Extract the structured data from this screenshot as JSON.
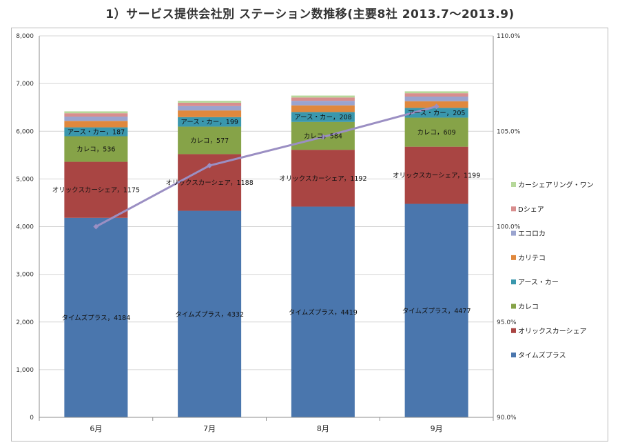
{
  "page": {
    "title": "1）サービス提供会社別 ステーション数推移(主要8社 2013.7～2013.9)"
  },
  "chart_data": {
    "type": "bar",
    "stacked": true,
    "categories": [
      "6月",
      "7月",
      "8月",
      "9月"
    ],
    "ylim": [
      0,
      8000
    ],
    "y_ticks": [
      "0",
      "1,000",
      "2,000",
      "3,000",
      "4,000",
      "5,000",
      "6,000",
      "7,000",
      "8,000"
    ],
    "y2lim": [
      0.9,
      1.1
    ],
    "y2_ticks": [
      "90.0%",
      "95.0%",
      "100.0%",
      "105.0%",
      "110.0%"
    ],
    "gridlines": true,
    "legend_position": "right",
    "series": [
      {
        "name": "タイムズプラス",
        "color": "#4a76ad",
        "values": [
          4184,
          4332,
          4419,
          4477
        ],
        "labeled": true
      },
      {
        "name": "オリックスカーシェア",
        "color": "#a94543",
        "values": [
          1175,
          1188,
          1192,
          1199
        ],
        "labeled": true
      },
      {
        "name": "カレコ",
        "color": "#86a348",
        "values": [
          536,
          577,
          584,
          609
        ],
        "labeled": true
      },
      {
        "name": "アース・カー",
        "color": "#3a97ad",
        "values": [
          187,
          199,
          208,
          205
        ],
        "labeled": true
      },
      {
        "name": "カリテコ",
        "color": "#e0883d",
        "values": [
          135,
          140,
          140,
          140
        ],
        "labeled": false
      },
      {
        "name": "エコロカ",
        "color": "#9aa4cf",
        "values": [
          90,
          92,
          95,
          97
        ],
        "labeled": false
      },
      {
        "name": "Dシェア",
        "color": "#d88e8e",
        "values": [
          70,
          70,
          70,
          70
        ],
        "labeled": false
      },
      {
        "name": "カーシェアリング・ワン",
        "color": "#b6d89a",
        "values": [
          40,
          40,
          40,
          40
        ],
        "labeled": false
      }
    ],
    "line": {
      "axis": "secondary",
      "color": "#9b8fc3",
      "values": [
        1.0,
        1.032,
        1.047,
        1.063
      ]
    }
  }
}
